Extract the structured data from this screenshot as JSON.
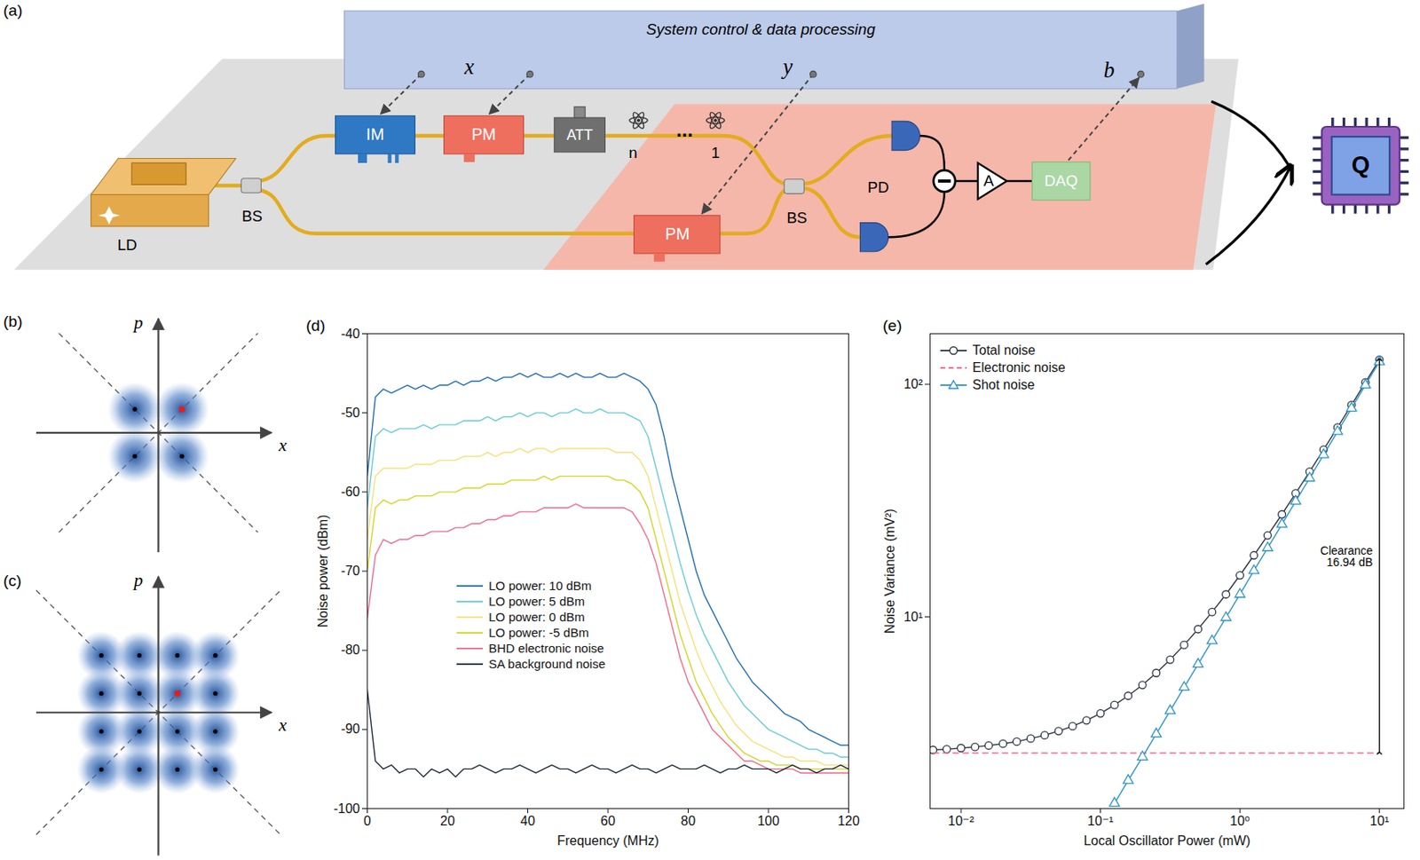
{
  "diagram": {
    "title": "(a)",
    "controller": "System control & data processing",
    "signals": {
      "x": "x",
      "y": "y",
      "b": "b"
    },
    "components": {
      "laser": "LD",
      "splitter_1": "BS",
      "intensity_modulator": "IM",
      "phase_modulator_1": "PM",
      "attenuator": "ATT",
      "splitter_2": "BS",
      "phase_modulator_2": "PM",
      "detectors": "PD",
      "amplifier": "A",
      "acquisition": "DAQ",
      "processor": "Q"
    },
    "atoms": [
      "n",
      "1"
    ],
    "ellipsis": "..."
  },
  "constellations": [
    {
      "title": "(b)",
      "x_label": "x",
      "y_label": "p",
      "points": [
        [
          -1,
          1
        ],
        [
          1,
          1
        ],
        [
          -1,
          -1
        ],
        [
          1,
          -1
        ]
      ],
      "highlight": [
        1,
        1
      ]
    },
    {
      "title": "(c)",
      "x_label": "x",
      "y_label": "p",
      "points": [
        [
          -3,
          3
        ],
        [
          -1,
          3
        ],
        [
          1,
          3
        ],
        [
          3,
          3
        ],
        [
          -3,
          1
        ],
        [
          -1,
          1
        ],
        [
          1,
          1
        ],
        [
          3,
          1
        ],
        [
          -3,
          -1
        ],
        [
          -1,
          -1
        ],
        [
          1,
          -1
        ],
        [
          3,
          -1
        ],
        [
          -3,
          -3
        ],
        [
          -1,
          -3
        ],
        [
          1,
          -3
        ],
        [
          3,
          -3
        ]
      ],
      "highlight": [
        1,
        1
      ]
    }
  ],
  "chart_data": [
    {
      "title": "(d)",
      "type": "line",
      "x_label": "Frequency (MHz)",
      "y_label": "Noise power (dBm)",
      "x": [
        0,
        2,
        4,
        6,
        8,
        10,
        12,
        14,
        16,
        18,
        20,
        22,
        24,
        26,
        28,
        30,
        32,
        34,
        36,
        38,
        40,
        42,
        44,
        46,
        48,
        50,
        52,
        54,
        56,
        58,
        60,
        62,
        64,
        66,
        68,
        70,
        72,
        74,
        76,
        78,
        80,
        82,
        84,
        86,
        88,
        90,
        92,
        94,
        96,
        98,
        100,
        102,
        104,
        106,
        108,
        110,
        112,
        114,
        116,
        118,
        120
      ],
      "xlim": [
        0,
        120
      ],
      "xticks": [
        0,
        20,
        40,
        60,
        80,
        100,
        120
      ],
      "ylim": [
        -100,
        -40
      ],
      "yticks": [
        -100,
        -90,
        -80,
        -70,
        -60,
        -50,
        -40
      ],
      "legend": "bottom",
      "series": [
        {
          "name": "LO power: 10 dBm",
          "color": "#1f6eb0",
          "values": [
            -58,
            -48,
            -47,
            -47.5,
            -47,
            -46.5,
            -47,
            -46.5,
            -47,
            -46.5,
            -46.5,
            -46,
            -46.5,
            -46,
            -46,
            -45.5,
            -46,
            -45.5,
            -45.5,
            -45,
            -45.5,
            -45,
            -45.5,
            -45.5,
            -45,
            -45.5,
            -45,
            -45.5,
            -45.5,
            -45,
            -45.5,
            -45.5,
            -45,
            -45.5,
            -46,
            -47,
            -49,
            -53,
            -58,
            -62,
            -66,
            -70,
            -73,
            -75,
            -77,
            -79,
            -81,
            -82.5,
            -84,
            -85,
            -86,
            -87,
            -88,
            -88.5,
            -89,
            -90,
            -90.5,
            -91,
            -91.5,
            -92,
            -92
          ]
        },
        {
          "name": "LO power: 5 dBm",
          "color": "#69cbd3",
          "values": [
            -62,
            -53,
            -52,
            -52.5,
            -52,
            -52,
            -52,
            -51.5,
            -52,
            -51.5,
            -51.5,
            -51.5,
            -51,
            -51,
            -51,
            -50.5,
            -51,
            -50.5,
            -50.5,
            -50,
            -50.5,
            -50,
            -50,
            -50.5,
            -50,
            -50,
            -49.5,
            -50,
            -50,
            -49.5,
            -50,
            -50,
            -50,
            -50.5,
            -51,
            -53,
            -57,
            -61,
            -65,
            -69,
            -72.5,
            -75.5,
            -78,
            -80,
            -82,
            -84,
            -85.5,
            -87,
            -88,
            -89,
            -90,
            -90.5,
            -91,
            -91.5,
            -92,
            -92.5,
            -92.5,
            -93,
            -93,
            -93.5,
            -93.5
          ]
        },
        {
          "name": "LO power: 0 dBm",
          "color": "#f3e27a",
          "values": [
            -66,
            -58,
            -57,
            -57,
            -57,
            -57,
            -56.5,
            -56.5,
            -56.5,
            -56,
            -56,
            -56,
            -55.5,
            -55.5,
            -55.5,
            -55,
            -55.5,
            -55,
            -55,
            -54.5,
            -55,
            -54.5,
            -54.5,
            -55,
            -54.5,
            -54.5,
            -54.5,
            -54.5,
            -54.5,
            -54.5,
            -54.5,
            -55,
            -55,
            -55,
            -56,
            -58,
            -62,
            -66,
            -70,
            -74,
            -77,
            -80,
            -82.5,
            -84.5,
            -86.5,
            -88,
            -89.5,
            -90.5,
            -91.5,
            -92,
            -92.5,
            -93,
            -93.5,
            -93.5,
            -94,
            -94,
            -94,
            -94.5,
            -94.5,
            -94.5,
            -94.5
          ]
        },
        {
          "name": "LO power: -5 dBm",
          "color": "#d2d52a",
          "values": [
            -70,
            -62,
            -61,
            -61.5,
            -61,
            -61,
            -60.5,
            -60.5,
            -60.5,
            -60,
            -60,
            -60,
            -59.5,
            -59.5,
            -59.5,
            -59,
            -59,
            -59,
            -58.5,
            -58.5,
            -58.5,
            -58.5,
            -58,
            -58.5,
            -58,
            -58,
            -58,
            -58,
            -58,
            -58,
            -58,
            -58.5,
            -58.5,
            -59,
            -60,
            -62,
            -66,
            -70,
            -74,
            -78,
            -81,
            -84,
            -86,
            -88,
            -89.5,
            -91,
            -92,
            -93,
            -93.5,
            -94,
            -94,
            -94.5,
            -94.5,
            -94.5,
            -95,
            -95,
            -95,
            -95,
            -95,
            -95,
            -95
          ]
        },
        {
          "name": "BHD electronic noise",
          "color": "#ec6a8c",
          "values": [
            -76,
            -68,
            -66,
            -66.5,
            -66,
            -66,
            -65.5,
            -65.5,
            -65,
            -65,
            -65,
            -64.5,
            -64.5,
            -64,
            -64,
            -63.5,
            -63.5,
            -63,
            -63,
            -62.5,
            -62.5,
            -62.5,
            -62,
            -62,
            -62,
            -62,
            -61.5,
            -62,
            -62,
            -62,
            -62,
            -62,
            -62,
            -62.5,
            -64,
            -66,
            -69,
            -73,
            -77,
            -81,
            -84,
            -86,
            -88,
            -90,
            -91,
            -92,
            -93,
            -94,
            -94,
            -94.5,
            -95,
            -95,
            -95,
            -95,
            -95.5,
            -95.5,
            -95.5,
            -95.5,
            -95.5,
            -95.5,
            -95.5
          ]
        },
        {
          "name": "SA background noise",
          "color": "#1e2a38",
          "values": [
            -85,
            -94,
            -95,
            -94.5,
            -95.5,
            -95,
            -95,
            -96,
            -95,
            -95.5,
            -95,
            -96,
            -95,
            -95,
            -94.5,
            -95,
            -95.5,
            -95,
            -95,
            -94.5,
            -95,
            -95.5,
            -95,
            -94.5,
            -95,
            -95,
            -95.5,
            -95,
            -94.5,
            -95,
            -95,
            -95.5,
            -95,
            -94.5,
            -95,
            -95,
            -95.5,
            -95,
            -94.5,
            -95,
            -95,
            -95,
            -94.5,
            -95,
            -95.5,
            -95,
            -95,
            -94.5,
            -95,
            -95,
            -95,
            -95.5,
            -95,
            -94.5,
            -95,
            -95,
            -95.5,
            -95,
            -95,
            -94.5,
            -95
          ]
        }
      ]
    },
    {
      "title": "(e)",
      "type": "line",
      "log": true,
      "x_label": "Local Oscillator Power (mW)",
      "y_label": "Noise Variance (mV²)",
      "x": [
        0.0063,
        0.0079,
        0.01,
        0.0126,
        0.0158,
        0.02,
        0.0251,
        0.0316,
        0.0398,
        0.0501,
        0.0631,
        0.0794,
        0.1,
        0.126,
        0.158,
        0.2,
        0.251,
        0.316,
        0.398,
        0.501,
        0.631,
        0.794,
        1,
        1.26,
        1.58,
        2,
        2.51,
        3.16,
        3.98,
        5.01,
        6.31,
        7.94,
        10
      ],
      "xlim": [
        0.006,
        15
      ],
      "xticks": [
        {
          "value": 0.01,
          "label": "10⁻²"
        },
        {
          "value": 0.1,
          "label": "10⁻¹"
        },
        {
          "value": 1,
          "label": "10⁰"
        },
        {
          "value": 10,
          "label": "10¹"
        }
      ],
      "ylim": [
        1.5,
        165
      ],
      "yticks": [
        {
          "value": 10,
          "label": "10¹"
        },
        {
          "value": 100,
          "label": "10²"
        }
      ],
      "legend": "topleft",
      "series": [
        {
          "name": "Total noise",
          "color": "#2b3440",
          "marker": "circle",
          "line_style": "solid",
          "values": [
            2.68,
            2.7,
            2.73,
            2.76,
            2.8,
            2.85,
            2.91,
            3.0,
            3.1,
            3.23,
            3.39,
            3.59,
            3.85,
            4.18,
            4.58,
            5.1,
            5.74,
            6.55,
            7.58,
            8.86,
            10.5,
            12.5,
            15.1,
            18.4,
            22.4,
            27.6,
            34.0,
            42.1,
            52.4,
            65.2,
            81.5,
            101.9,
            127.6
          ]
        },
        {
          "name": "Electronic noise",
          "color": "#f0708a",
          "line_style": "dashed",
          "values": [
            2.6,
            2.6,
            2.6,
            2.6,
            2.6,
            2.6,
            2.6,
            2.6,
            2.6,
            2.6,
            2.6,
            2.6,
            2.6,
            2.6,
            2.6,
            2.6,
            2.6,
            2.6,
            2.6,
            2.6,
            2.6,
            2.6,
            2.6,
            2.6,
            2.6,
            2.6,
            2.6,
            2.6,
            2.6,
            2.6,
            2.6,
            2.6,
            2.6
          ]
        },
        {
          "name": "Shot noise",
          "color": "#2e93c8",
          "marker": "triangle",
          "line_style": "solid",
          "values": [
            null,
            null,
            null,
            null,
            null,
            null,
            null,
            null,
            null,
            null,
            null,
            null,
            null,
            1.58,
            1.98,
            2.5,
            3.14,
            3.95,
            4.98,
            6.26,
            7.89,
            9.93,
            12.5,
            15.8,
            19.8,
            25.0,
            31.4,
            39.5,
            49.8,
            62.6,
            78.9,
            99.3,
            125.0
          ]
        }
      ],
      "annotation": {
        "text": [
          "Clearance",
          "16.94 dB"
        ],
        "x": 10,
        "y_from": 2.6,
        "y_to": 127.6
      }
    }
  ]
}
